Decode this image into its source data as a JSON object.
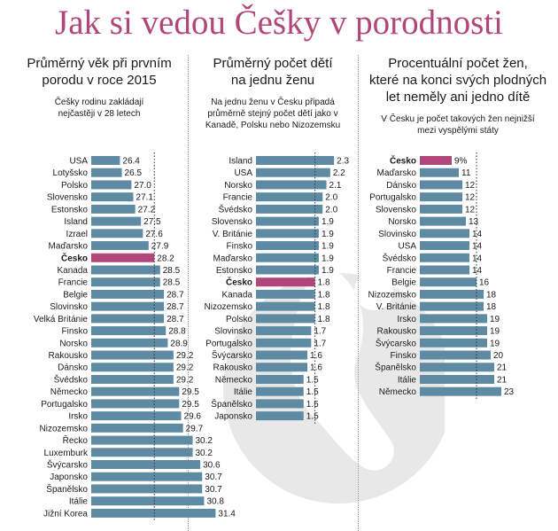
{
  "title": "Jak si vedou Češky v porodnosti",
  "colors": {
    "title": "#b0467a",
    "bar": "#5e8aa4",
    "highlight": "#b0467a"
  },
  "panels": [
    {
      "title_lines": [
        "Průměrný věk při prvním",
        "porodu v roce 2015"
      ],
      "subtitle_lines": [
        "Češky rodinu zakládají",
        "nejčastěji v 28 letech"
      ]
    },
    {
      "title_lines": [
        "Průměrný počet dětí",
        "na jednu ženu"
      ],
      "subtitle_lines": [
        "Na jednu ženu v Česku připadá",
        "průměrně stejný počet dětí jako v",
        "Kanadě, Polsku nebo Nizozemsku"
      ]
    },
    {
      "title_lines": [
        "Procentuální počet žen,",
        "které na konci svých plodných",
        "let neměly ani jedno dítě"
      ],
      "subtitle_lines": [
        "V Česku je počet takových žen nejnižší",
        "mezi vyspělými státy"
      ]
    }
  ],
  "chart_data": [
    {
      "type": "bar",
      "orientation": "horizontal",
      "highlight": "Česko",
      "categories": [
        "USA",
        "Lotyšsko",
        "Polsko",
        "Slovensko",
        "Estonsko",
        "Island",
        "Izrael",
        "Maďarsko",
        "Česko",
        "Kanada",
        "Francie",
        "Belgie",
        "Slovinsko",
        "Velká Británie",
        "Finsko",
        "Norsko",
        "Rakousko",
        "Dánsko",
        "Švédsko",
        "Německo",
        "Portugalsko",
        "Irsko",
        "Nizozemsko",
        "Řecko",
        "Luxemburk",
        "Švýcarsko",
        "Japonsko",
        "Španělsko",
        "Itálie",
        "Jižní Korea"
      ],
      "values": [
        26.4,
        26.5,
        27.0,
        27.1,
        27.2,
        27.5,
        27.6,
        27.9,
        28.2,
        28.5,
        28.5,
        28.7,
        28.7,
        28.7,
        28.8,
        28.9,
        29.2,
        29.2,
        29.2,
        29.5,
        29.5,
        29.6,
        29.7,
        30.2,
        30.2,
        30.6,
        30.7,
        30.7,
        30.8,
        31.4
      ],
      "value_labels": [
        "26.4",
        "26.5",
        "27.0",
        "27.1",
        "27.2",
        "27.5",
        "27.6",
        "27.9",
        "28.2",
        "28.5",
        "28.5",
        "28.7",
        "28.7",
        "28.7",
        "28.8",
        "28.9",
        "29.2",
        "29.2",
        "29.2",
        "29.5",
        "29.5",
        "29.6",
        "29.7",
        "30.2",
        "30.2",
        "30.6",
        "30.7",
        "30.7",
        "30.8",
        "31.4"
      ]
    },
    {
      "type": "bar",
      "orientation": "horizontal",
      "highlight": "Česko",
      "categories": [
        "Island",
        "USA",
        "Norsko",
        "Francie",
        "Švédsko",
        "Slovensko",
        "V. Británie",
        "Finsko",
        "Maďarsko",
        "Estonsko",
        "Česko",
        "Kanada",
        "Nizozemsko",
        "Polsko",
        "Slovinsko",
        "Portugalsko",
        "Švýcarsko",
        "Rakousko",
        "Německo",
        "Itálie",
        "Španělsko",
        "Japonsko"
      ],
      "values": [
        2.3,
        2.2,
        2.1,
        2.0,
        2.0,
        1.9,
        1.9,
        1.9,
        1.9,
        1.9,
        1.8,
        1.8,
        1.8,
        1.8,
        1.7,
        1.7,
        1.6,
        1.6,
        1.5,
        1.5,
        1.5,
        1.5
      ],
      "value_labels": [
        "2.3",
        "2.2",
        "2.1",
        "2.0",
        "2.0",
        "1.9",
        "1.9",
        "1.9",
        "1.9",
        "1.9",
        "1.8",
        "1.8",
        "1.8",
        "1.8",
        "1.7",
        "1.7",
        "1.6",
        "1.6",
        "1.5",
        "1.5",
        "1.5",
        "1.5"
      ]
    },
    {
      "type": "bar",
      "orientation": "horizontal",
      "unit": "%",
      "highlight": "Česko",
      "categories": [
        "Česko",
        "Maďarsko",
        "Dánsko",
        "Portugalsko",
        "Slovensko",
        "Norsko",
        "Slovinsko",
        "USA",
        "Švédsko",
        "Francie",
        "Belgie",
        "Nizozemsko",
        "V. Británie",
        "Irsko",
        "Rakousko",
        "Švýcarsko",
        "Finsko",
        "Španělsko",
        "Itálie",
        "Německo"
      ],
      "values": [
        9,
        11,
        12,
        12,
        12,
        13,
        14,
        14,
        14,
        14,
        16,
        18,
        18,
        19,
        19,
        19,
        20,
        21,
        21,
        23
      ],
      "value_labels": [
        "9%",
        "11",
        "12",
        "12",
        "12",
        "13",
        "14",
        "14",
        "14",
        "14",
        "16",
        "18",
        "18",
        "19",
        "19",
        "19",
        "20",
        "21",
        "21",
        "23"
      ]
    }
  ]
}
